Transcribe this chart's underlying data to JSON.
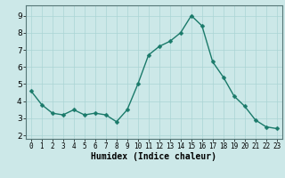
{
  "x": [
    0,
    1,
    2,
    3,
    4,
    5,
    6,
    7,
    8,
    9,
    10,
    11,
    12,
    13,
    14,
    15,
    16,
    17,
    18,
    19,
    20,
    21,
    22,
    23
  ],
  "y": [
    4.6,
    3.8,
    3.3,
    3.2,
    3.5,
    3.2,
    3.3,
    3.2,
    2.8,
    3.5,
    5.0,
    6.7,
    7.2,
    7.5,
    8.0,
    9.0,
    8.4,
    6.3,
    5.4,
    4.3,
    3.7,
    2.9,
    2.5,
    2.4
  ],
  "line_color": "#1a7a6a",
  "marker_color": "#1a7a6a",
  "bg_color": "#cce8e8",
  "grid_color": "#aad4d4",
  "xlabel": "Humidex (Indice chaleur)",
  "xlabel_fontsize": 7,
  "xlim": [
    -0.5,
    23.5
  ],
  "ylim": [
    1.8,
    9.6
  ],
  "yticks": [
    2,
    3,
    4,
    5,
    6,
    7,
    8,
    9
  ],
  "xticks": [
    0,
    1,
    2,
    3,
    4,
    5,
    6,
    7,
    8,
    9,
    10,
    11,
    12,
    13,
    14,
    15,
    16,
    17,
    18,
    19,
    20,
    21,
    22,
    23
  ],
  "marker_size": 2.5,
  "line_width": 1.0
}
